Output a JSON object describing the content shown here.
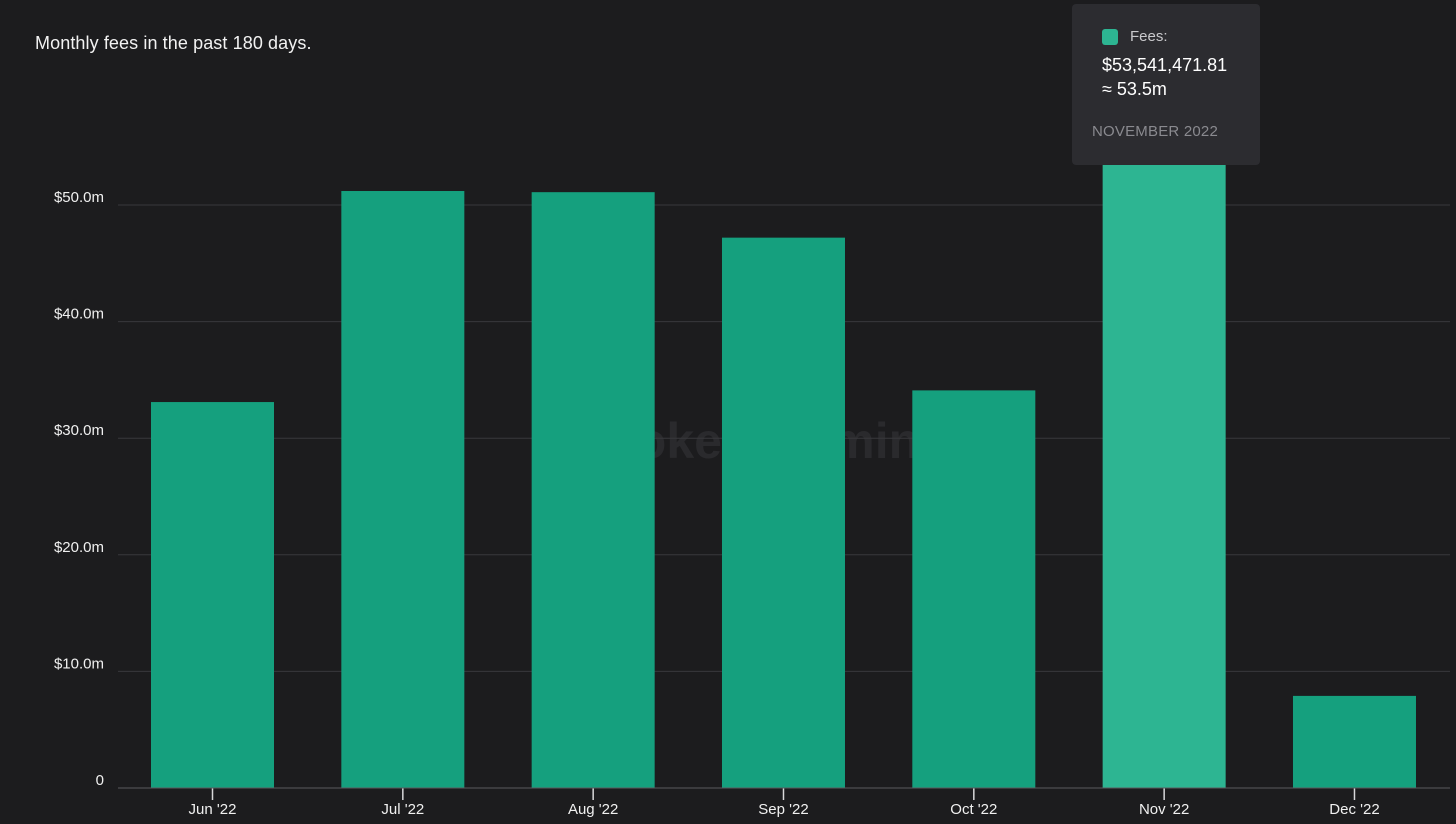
{
  "title": "Monthly fees in the past 180 days.",
  "watermark": "token terminal",
  "colors": {
    "bar": "#15a07e",
    "bar_highlight": "#2db592",
    "grid": "#38383c",
    "axis": "#5a5a5e",
    "background": "#1c1c1e"
  },
  "tooltip": {
    "series_label": "Fees:",
    "value": "$53,541,471.81",
    "approx": "≈ 53.5m",
    "date": "NOVEMBER 2022"
  },
  "chart_data": {
    "type": "bar",
    "title": "Monthly fees in the past 180 days.",
    "xlabel": "",
    "ylabel": "",
    "categories": [
      "Jun '22",
      "Jul '22",
      "Aug '22",
      "Sep '22",
      "Oct '22",
      "Nov '22",
      "Dec '22"
    ],
    "series": [
      {
        "name": "Fees",
        "values": [
          33.1,
          51.2,
          51.1,
          47.2,
          34.1,
          53.54,
          7.9
        ]
      }
    ],
    "unit": "million USD",
    "ylim": [
      0,
      50
    ],
    "yticks": [
      0,
      10,
      20,
      30,
      40,
      50
    ],
    "ytick_labels": [
      "0",
      "$10.0m",
      "$20.0m",
      "$30.0m",
      "$40.0m",
      "$50.0m"
    ],
    "highlighted_category": "Nov '22",
    "grid": true,
    "legend": "none"
  }
}
